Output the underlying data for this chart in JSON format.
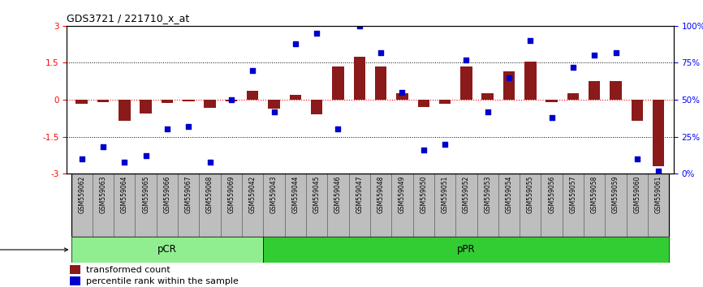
{
  "title": "GDS3721 / 221710_x_at",
  "samples": [
    "GSM559062",
    "GSM559063",
    "GSM559064",
    "GSM559065",
    "GSM559066",
    "GSM559067",
    "GSM559068",
    "GSM559069",
    "GSM559042",
    "GSM559043",
    "GSM559044",
    "GSM559045",
    "GSM559046",
    "GSM559047",
    "GSM559048",
    "GSM559049",
    "GSM559050",
    "GSM559051",
    "GSM559052",
    "GSM559053",
    "GSM559054",
    "GSM559055",
    "GSM559056",
    "GSM559057",
    "GSM559058",
    "GSM559059",
    "GSM559060",
    "GSM559061"
  ],
  "transformed_count": [
    -0.15,
    -0.1,
    -0.85,
    -0.55,
    -0.12,
    -0.08,
    -0.32,
    -0.05,
    0.35,
    -0.35,
    0.2,
    -0.6,
    1.35,
    1.75,
    1.35,
    0.25,
    -0.3,
    -0.15,
    1.35,
    0.25,
    1.15,
    1.55,
    -0.1,
    0.25,
    0.75,
    0.75,
    -0.85,
    -2.7
  ],
  "percentile_rank": [
    10,
    18,
    8,
    12,
    30,
    32,
    8,
    50,
    70,
    42,
    88,
    95,
    30,
    100,
    82,
    55,
    16,
    20,
    77,
    42,
    65,
    90,
    38,
    72,
    80,
    82,
    10,
    2
  ],
  "pCR_count": 9,
  "pPR_count": 19,
  "bar_color": "#8B1A1A",
  "dot_color": "#0000CD",
  "pCR_color": "#90EE90",
  "pPR_color": "#32CD32",
  "tick_bg": "#BEBEBE"
}
